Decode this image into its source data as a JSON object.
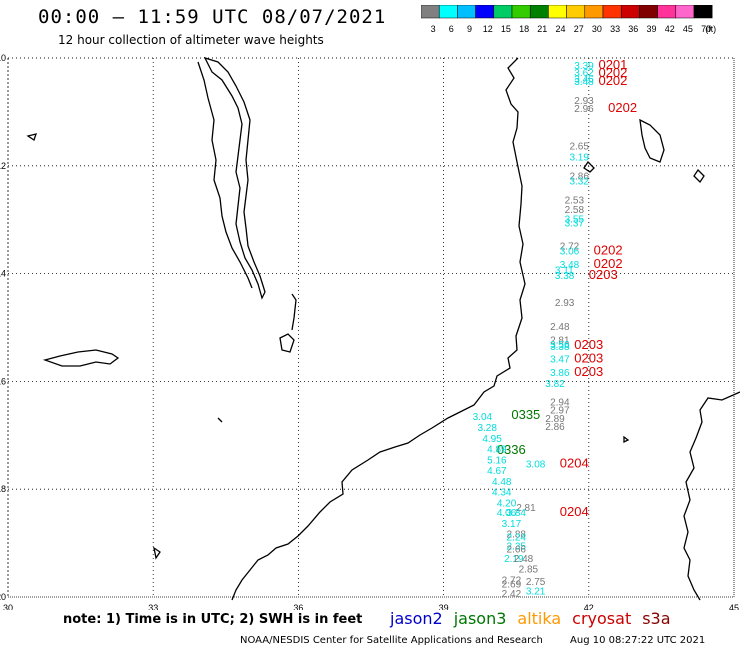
{
  "header": {
    "title": "00:00 – 11:59 UTC 08/07/2021",
    "subtitle": "12 hour collection of altimeter wave heights"
  },
  "color_scale": {
    "bins": [
      {
        "label": "3",
        "color": "#808080"
      },
      {
        "label": "6",
        "color": "#00ffff"
      },
      {
        "label": "9",
        "color": "#00bfff"
      },
      {
        "label": "12",
        "color": "#0000ff"
      },
      {
        "label": "15",
        "color": "#00cc66"
      },
      {
        "label": "18",
        "color": "#33cc00"
      },
      {
        "label": "21",
        "color": "#008000"
      },
      {
        "label": "24",
        "color": "#ffff00"
      },
      {
        "label": "27",
        "color": "#ffcc00"
      },
      {
        "label": "30",
        "color": "#ff9900"
      },
      {
        "label": "33",
        "color": "#ff3300"
      },
      {
        "label": "36",
        "color": "#cc0000"
      },
      {
        "label": "39",
        "color": "#800000"
      },
      {
        "label": "42",
        "color": "#ff3399"
      },
      {
        "label": "45",
        "color": "#ff66cc"
      },
      {
        "label": "70",
        "color": "#000000"
      }
    ],
    "unit": "(ft)"
  },
  "map": {
    "lon_range": [
      30,
      45
    ],
    "lat_range": [
      -20,
      -10
    ],
    "lon_ticks": [
      "30",
      "33",
      "36",
      "39",
      "42",
      "45"
    ],
    "lat_ticks": [
      "-10",
      "-12",
      "-14",
      "-16",
      "-18",
      "-20"
    ],
    "grid": true
  },
  "observations": [
    {
      "lon": 41.7,
      "lat": -10.2,
      "text": "3.39",
      "c": "cyan"
    },
    {
      "lon": 41.7,
      "lat": -10.33,
      "text": "3.62",
      "c": "cyan"
    },
    {
      "lon": 41.7,
      "lat": -10.45,
      "text": "3.46",
      "c": "cyan"
    },
    {
      "lon": 41.7,
      "lat": -10.5,
      "text": "3.48",
      "c": "cyan"
    },
    {
      "lon": 42.2,
      "lat": -10.2,
      "text": "0201",
      "c": "red"
    },
    {
      "lon": 42.2,
      "lat": -10.35,
      "text": "0202",
      "c": "red"
    },
    {
      "lon": 42.2,
      "lat": -10.5,
      "text": "0202",
      "c": "red"
    },
    {
      "lon": 41.7,
      "lat": -10.85,
      "text": "2.93",
      "c": "gray"
    },
    {
      "lon": 41.7,
      "lat": -11.0,
      "text": "2.96",
      "c": "gray"
    },
    {
      "lon": 42.4,
      "lat": -11.0,
      "text": "0202",
      "c": "red"
    },
    {
      "lon": 41.6,
      "lat": -11.7,
      "text": "2.65",
      "c": "gray"
    },
    {
      "lon": 41.6,
      "lat": -11.9,
      "text": "3.19",
      "c": "cyan"
    },
    {
      "lon": 41.6,
      "lat": -12.25,
      "text": "2.86",
      "c": "gray"
    },
    {
      "lon": 41.6,
      "lat": -12.35,
      "text": "3.32",
      "c": "cyan"
    },
    {
      "lon": 41.5,
      "lat": -12.7,
      "text": "2.53",
      "c": "gray"
    },
    {
      "lon": 41.5,
      "lat": -12.88,
      "text": "2.58",
      "c": "gray"
    },
    {
      "lon": 41.5,
      "lat": -13.05,
      "text": "3.55",
      "c": "cyan"
    },
    {
      "lon": 41.5,
      "lat": -13.13,
      "text": "3.37",
      "c": "cyan"
    },
    {
      "lon": 41.4,
      "lat": -13.55,
      "text": "2.72",
      "c": "gray"
    },
    {
      "lon": 41.4,
      "lat": -13.65,
      "text": "3.06",
      "c": "cyan"
    },
    {
      "lon": 42.1,
      "lat": -13.65,
      "text": "0202",
      "c": "red"
    },
    {
      "lon": 41.4,
      "lat": -13.9,
      "text": "3.48",
      "c": "cyan"
    },
    {
      "lon": 42.1,
      "lat": -13.9,
      "text": "0202",
      "c": "red"
    },
    {
      "lon": 41.3,
      "lat": -14.0,
      "text": "3.11",
      "c": "cyan"
    },
    {
      "lon": 41.3,
      "lat": -14.1,
      "text": "3.38",
      "c": "cyan"
    },
    {
      "lon": 42.0,
      "lat": -14.1,
      "text": "0203",
      "c": "red"
    },
    {
      "lon": 41.3,
      "lat": -14.6,
      "text": "2.93",
      "c": "gray"
    },
    {
      "lon": 41.2,
      "lat": -15.05,
      "text": "2.48",
      "c": "gray"
    },
    {
      "lon": 41.2,
      "lat": -15.3,
      "text": "2.81",
      "c": "gray"
    },
    {
      "lon": 41.2,
      "lat": -15.38,
      "text": "3.56",
      "c": "cyan"
    },
    {
      "lon": 41.2,
      "lat": -15.42,
      "text": "3.38",
      "c": "cyan"
    },
    {
      "lon": 41.7,
      "lat": -15.4,
      "text": "0203",
      "c": "red"
    },
    {
      "lon": 41.2,
      "lat": -15.65,
      "text": "3.47",
      "c": "cyan"
    },
    {
      "lon": 41.7,
      "lat": -15.65,
      "text": "0203",
      "c": "red"
    },
    {
      "lon": 41.2,
      "lat": -15.9,
      "text": "3.86",
      "c": "cyan"
    },
    {
      "lon": 41.7,
      "lat": -15.9,
      "text": "0203",
      "c": "red"
    },
    {
      "lon": 41.1,
      "lat": -16.1,
      "text": "3.82",
      "c": "cyan"
    },
    {
      "lon": 41.2,
      "lat": -16.45,
      "text": "2.94",
      "c": "gray"
    },
    {
      "lon": 41.2,
      "lat": -16.6,
      "text": "2.97",
      "c": "gray"
    },
    {
      "lon": 40.4,
      "lat": -16.7,
      "text": "0335",
      "c": "green"
    },
    {
      "lon": 41.1,
      "lat": -16.75,
      "text": "2.89",
      "c": "gray"
    },
    {
      "lon": 41.1,
      "lat": -16.9,
      "text": "2.86",
      "c": "gray"
    },
    {
      "lon": 39.6,
      "lat": -16.72,
      "text": "3.04",
      "c": "cyan"
    },
    {
      "lon": 39.7,
      "lat": -16.92,
      "text": "3.28",
      "c": "cyan"
    },
    {
      "lon": 39.8,
      "lat": -17.12,
      "text": "4.95",
      "c": "cyan"
    },
    {
      "lon": 40.1,
      "lat": -17.35,
      "text": "0336",
      "c": "green"
    },
    {
      "lon": 39.9,
      "lat": -17.32,
      "text": "4.89",
      "c": "cyan"
    },
    {
      "lon": 39.9,
      "lat": -17.52,
      "text": "5.16",
      "c": "cyan"
    },
    {
      "lon": 40.7,
      "lat": -17.6,
      "text": "3.08",
      "c": "cyan"
    },
    {
      "lon": 41.4,
      "lat": -17.6,
      "text": "0204",
      "c": "red"
    },
    {
      "lon": 39.9,
      "lat": -17.72,
      "text": "4.67",
      "c": "cyan"
    },
    {
      "lon": 40.0,
      "lat": -17.92,
      "text": "4.48",
      "c": "cyan"
    },
    {
      "lon": 40.0,
      "lat": -18.12,
      "text": "4.34",
      "c": "cyan"
    },
    {
      "lon": 40.1,
      "lat": -18.32,
      "text": "4.20",
      "c": "cyan"
    },
    {
      "lon": 40.5,
      "lat": -18.4,
      "text": "2.81",
      "c": "gray"
    },
    {
      "lon": 40.1,
      "lat": -18.5,
      "text": "4.06",
      "c": "cyan"
    },
    {
      "lon": 40.3,
      "lat": -18.5,
      "text": "3.84",
      "c": "cyan"
    },
    {
      "lon": 41.4,
      "lat": -18.5,
      "text": "0204",
      "c": "red"
    },
    {
      "lon": 40.2,
      "lat": -18.7,
      "text": "3.17",
      "c": "cyan"
    },
    {
      "lon": 40.3,
      "lat": -18.9,
      "text": "2.88",
      "c": "gray"
    },
    {
      "lon": 40.3,
      "lat": -18.95,
      "text": "2.24",
      "c": "cyan"
    },
    {
      "lon": 40.3,
      "lat": -19.12,
      "text": "2.35",
      "c": "cyan"
    },
    {
      "lon": 40.3,
      "lat": -19.17,
      "text": "2.66",
      "c": "gray"
    },
    {
      "lon": 40.25,
      "lat": -19.35,
      "text": "2.19",
      "c": "cyan"
    },
    {
      "lon": 40.45,
      "lat": -19.35,
      "text": "2.48",
      "c": "gray"
    },
    {
      "lon": 40.55,
      "lat": -19.55,
      "text": "2.85",
      "c": "gray"
    },
    {
      "lon": 40.2,
      "lat": -19.75,
      "text": "2.72",
      "c": "gray"
    },
    {
      "lon": 40.2,
      "lat": -19.82,
      "text": "2.69",
      "c": "gray"
    },
    {
      "lon": 40.7,
      "lat": -19.78,
      "text": "2.75",
      "c": "gray"
    },
    {
      "lon": 40.7,
      "lat": -19.95,
      "text": "3.21",
      "c": "cyan"
    },
    {
      "lon": 40.2,
      "lat": -20.0,
      "text": "2.42",
      "c": "gray"
    }
  ],
  "footer": {
    "note": "note: 1) Time is in UTC; 2) SWH is in feet",
    "satellites": [
      {
        "name": "jason2",
        "color": "#0000cc"
      },
      {
        "name": "jason3",
        "color": "#007700"
      },
      {
        "name": "altika",
        "color": "#ff9900"
      },
      {
        "name": "cryosat",
        "color": "#cc0000"
      },
      {
        "name": "s3a",
        "color": "#880000"
      }
    ],
    "credit": "NOAA/NESDIS Center for Satellite Applications and Research",
    "timestamp": "Aug 10 08:27:22 UTC 2021"
  }
}
